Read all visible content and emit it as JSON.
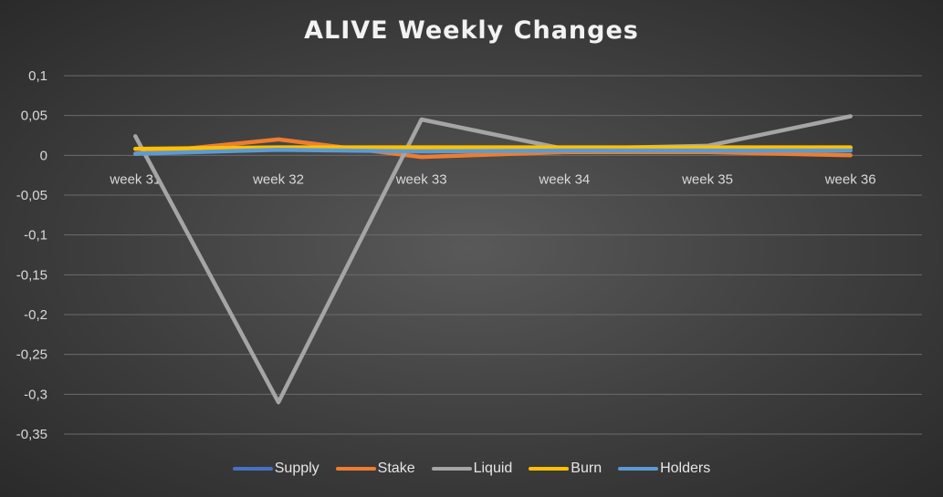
{
  "chart_data": {
    "type": "line",
    "title": "ALIVE Weekly Changes",
    "categories": [
      "week 31",
      "week 32",
      "week 33",
      "week 34",
      "week 35",
      "week 36"
    ],
    "ylim": [
      -0.35,
      0.1
    ],
    "yticks": [
      "0,1",
      "0,05",
      "0",
      "-0,05",
      "-0,1",
      "-0,15",
      "-0,2",
      "-0,25",
      "-0,3",
      "-0,35"
    ],
    "ytick_values": [
      0.1,
      0.05,
      0,
      -0.05,
      -0.1,
      -0.15,
      -0.2,
      -0.25,
      -0.3,
      -0.35
    ],
    "grid": true,
    "legend_position": "bottom",
    "series": [
      {
        "name": "Supply",
        "color": "#4472c4",
        "values": [
          0.008,
          0.009,
          0.009,
          0.009,
          0.009,
          0.009
        ]
      },
      {
        "name": "Stake",
        "color": "#ed7d31",
        "values": [
          0.002,
          0.02,
          -0.002,
          0.004,
          0.004,
          0.0
        ]
      },
      {
        "name": "Liquid",
        "color": "#a5a5a5",
        "values": [
          0.024,
          -0.31,
          0.045,
          0.008,
          0.012,
          0.049
        ]
      },
      {
        "name": "Burn",
        "color": "#ffc000",
        "values": [
          0.008,
          0.01,
          0.01,
          0.01,
          0.01,
          0.01
        ]
      },
      {
        "name": "Holders",
        "color": "#5b9bd5",
        "values": [
          0.002,
          0.007,
          0.005,
          0.006,
          0.006,
          0.006
        ]
      }
    ]
  }
}
